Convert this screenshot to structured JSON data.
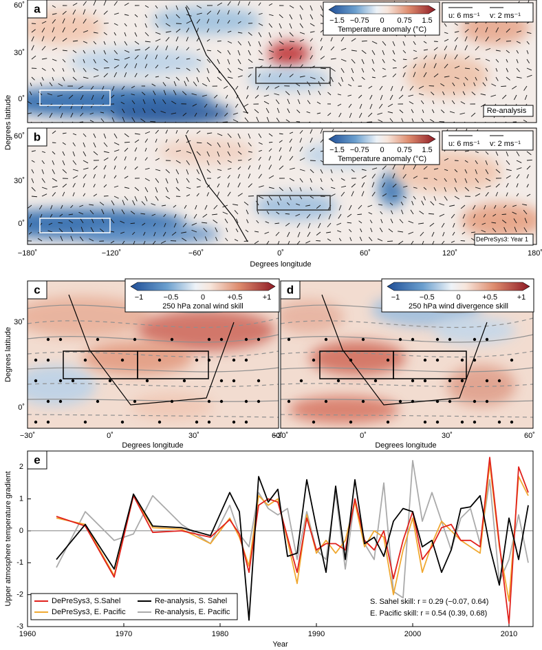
{
  "maps": {
    "top_axes": {
      "y_label": "Degrees latitude",
      "x_label": "Degrees longitude",
      "xticks": [
        "−180˚",
        "−120˚",
        "−60˚",
        "0˚",
        "60˚",
        "120˚",
        "180˚"
      ],
      "a_yticks": [
        "60˚",
        "30˚",
        "0˚"
      ],
      "b_yticks": [
        "60˚",
        "30˚",
        "0˚"
      ]
    },
    "mid_axes": {
      "y_label": "Degrees latitude",
      "x_label": "Degrees longitude",
      "c_xticks": [
        "−30˚",
        "0˚",
        "30˚",
        "60˚"
      ],
      "d_xticks": [
        "−30˚",
        "0˚",
        "30˚",
        "60˚"
      ],
      "yticks": [
        "30˚",
        "0˚"
      ]
    },
    "panels": [
      {
        "label": "a",
        "colorbar": {
          "ticks": [
            "−1.5",
            "−0.75",
            "0",
            "0.75",
            "1.5"
          ],
          "title": "Temperature anomaly (°C)"
        },
        "wind_key": [
          "u: 6 ms⁻¹",
          "v: 2 ms⁻¹"
        ],
        "tag": "Re-analysis"
      },
      {
        "label": "b",
        "colorbar": {
          "ticks": [
            "−1.5",
            "−0.75",
            "0",
            "0.75",
            "1.5"
          ],
          "title": "Temperature anomaly (°C)"
        },
        "wind_key": [
          "u: 6 ms⁻¹",
          "v: 2 ms⁻¹"
        ],
        "tag": "DePreSys3: Year 1"
      },
      {
        "label": "c",
        "colorbar": {
          "ticks": [
            "−1",
            "−0.5",
            "0",
            "+0.5",
            "+1"
          ],
          "title": "250 hPa zonal wind skill"
        }
      },
      {
        "label": "d",
        "colorbar": {
          "ticks": [
            "−1",
            "−0.5",
            "0",
            "+0.5",
            "+1"
          ],
          "title": "250 hPa wind divergence skill"
        }
      }
    ]
  },
  "chart_data": {
    "type": "line",
    "panel_label": "e",
    "x_label": "Year",
    "y_label": "Upper atmosphere temperature gradient",
    "x": [
      1963,
      1966,
      1969,
      1971,
      1973,
      1976,
      1979,
      1981,
      1982,
      1983,
      1984,
      1985,
      1986,
      1987,
      1988,
      1989,
      1990,
      1991,
      1992,
      1993,
      1994,
      1995,
      1996,
      1997,
      1998,
      1999,
      2000,
      2001,
      2002,
      2003,
      2004,
      2005,
      2006,
      2007,
      2008,
      2009,
      2010,
      2011,
      2012
    ],
    "series": [
      {
        "name": "DePreSys3, S.Sahel",
        "color": "#e0201b",
        "values": [
          0.45,
          0.15,
          -1.45,
          1.1,
          -0.05,
          0.0,
          -0.2,
          0.35,
          -0.1,
          -1.3,
          0.8,
          1.0,
          0.9,
          -0.2,
          -1.3,
          0.4,
          -0.6,
          -0.4,
          -0.4,
          -0.6,
          1.0,
          -0.3,
          -0.6,
          0.0,
          -1.5,
          -0.3,
          0.6,
          -0.9,
          -0.5,
          0.1,
          0.2,
          -0.3,
          -0.3,
          -0.5,
          2.3,
          -0.4,
          -2.9,
          2.0,
          1.2
        ]
      },
      {
        "name": "DePreSys3, E. Pacific",
        "color": "#f0a830",
        "values": [
          0.4,
          0.2,
          -1.4,
          1.1,
          0.1,
          0.05,
          -0.4,
          0.4,
          -0.2,
          -1.1,
          1.1,
          0.8,
          1.0,
          -0.3,
          -1.65,
          0.5,
          -0.7,
          -0.3,
          -0.7,
          -0.3,
          0.9,
          -0.5,
          0.0,
          -0.2,
          -2.0,
          -0.6,
          0.4,
          -1.3,
          -0.4,
          0.3,
          0.0,
          -0.3,
          -0.5,
          -0.7,
          2.1,
          -0.5,
          -2.2,
          1.7,
          1.1
        ]
      },
      {
        "name": "Re-analysis, S. Sahel",
        "color": "#000000",
        "values": [
          -0.9,
          0.2,
          -1.2,
          1.15,
          0.15,
          0.1,
          -0.15,
          1.2,
          0.6,
          -2.8,
          1.7,
          0.9,
          1.3,
          -0.8,
          -0.7,
          1.6,
          0.1,
          -1.3,
          1.4,
          -0.9,
          1.6,
          -0.4,
          -0.2,
          -0.8,
          0.3,
          0.7,
          0.6,
          -0.5,
          -0.3,
          -1.3,
          -0.6,
          0.7,
          0.75,
          1.1,
          -0.5,
          -1.7,
          0.4,
          -0.9,
          0.8
        ]
      },
      {
        "name": "Re-analysis, E. Pacific",
        "color": "#aaaaaa",
        "values": [
          -1.15,
          0.6,
          -0.3,
          -0.1,
          1.1,
          0.2,
          -0.4,
          0.8,
          -0.1,
          -0.5,
          1.2,
          0.7,
          0.5,
          0.7,
          -0.9,
          0.6,
          -0.6,
          -0.9,
          1.2,
          -1.2,
          1.0,
          -0.4,
          -0.9,
          1.5,
          -1.9,
          -2.1,
          2.2,
          0.3,
          1.2,
          0.3,
          -0.6,
          0.4,
          0.7,
          -0.4,
          1.6,
          -1.6,
          -0.9,
          0.5,
          -1.0
        ]
      }
    ],
    "xlim": [
      1960,
      2012.5
    ],
    "xticks": [
      1960,
      1970,
      1980,
      1990,
      2000,
      2010
    ],
    "ylim": [
      -3,
      2.5
    ],
    "yticks": [
      -3,
      -2,
      -1,
      0,
      1,
      2
    ],
    "legend": "lower left",
    "annotations": [
      "S. Sahel skill: r = 0.29 (−0.07, 0.64)",
      "E. Pacific skill: r = 0.54 (0.39, 0.68)"
    ]
  }
}
